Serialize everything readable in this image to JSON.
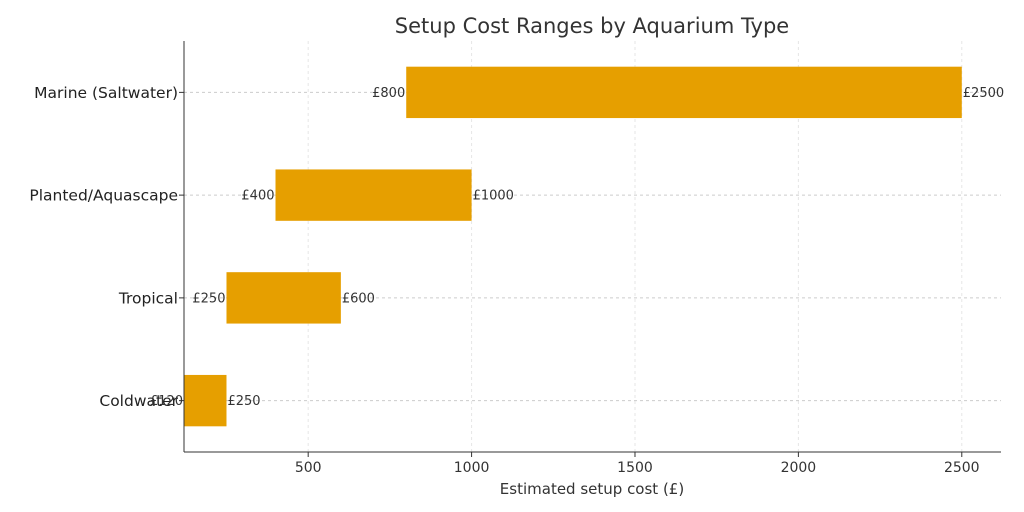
{
  "chart_data": {
    "type": "bar",
    "orientation": "horizontal",
    "subtype": "floating-range",
    "title": "Setup Cost Ranges by Aquarium Type",
    "xlabel": "Estimated setup cost (£)",
    "ylabel": "",
    "xlim": [
      120,
      2620
    ],
    "xticks": [
      500,
      1000,
      1500,
      2000,
      2500
    ],
    "grid": true,
    "bar_color": "#E69F00",
    "currency_prefix": "£",
    "categories": [
      "Coldwater",
      "Tropical",
      "Planted/Aquascape",
      "Marine (Saltwater)"
    ],
    "series": [
      {
        "low": [
          120,
          250,
          400,
          800
        ],
        "high": [
          250,
          600,
          1000,
          2500
        ]
      }
    ],
    "low_labels": [
      "£120",
      "£250",
      "£400",
      "£800"
    ],
    "high_labels": [
      "£250",
      "£600",
      "£1000",
      "£2500"
    ]
  }
}
